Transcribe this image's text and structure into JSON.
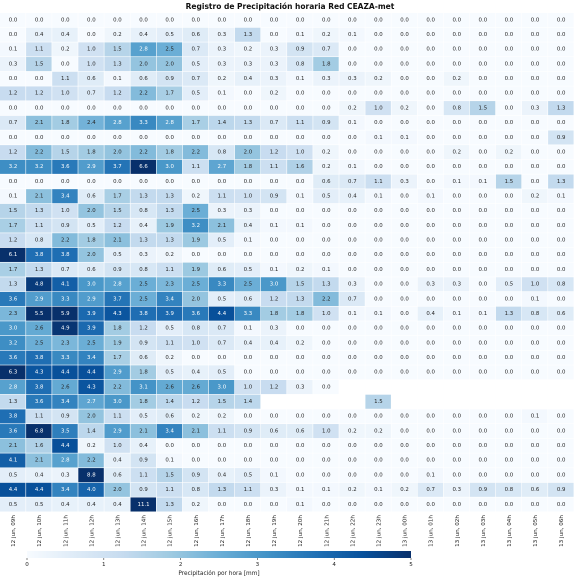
{
  "chart_data": {
    "type": "heatmap",
    "title": "Registro de Precipitación horaria Red CEAZA-met",
    "x_tick_labels": [
      "12 jun, 09h",
      "12 jun, 10h",
      "12 jun, 11h",
      "12 jun, 12h",
      "12 jun, 13h",
      "12 jun, 14h",
      "12 jun, 15h",
      "12 jun, 16h",
      "12 jun, 17h",
      "12 jun, 18h",
      "12 jun, 19h",
      "12 jun, 20h",
      "12 jun, 21h",
      "12 jun, 22h",
      "12 jun, 23h",
      "13 jun, 00h",
      "13 jun, 01h",
      "13 jun, 02h",
      "13 jun, 03h",
      "13 jun, 04h",
      "13 jun, 05h",
      "13 jun, 06h"
    ],
    "colorbar": {
      "label": "Precipitación por hora [mm]",
      "ticks": [
        0,
        1,
        2,
        3,
        4,
        5
      ],
      "range": [
        0,
        5
      ],
      "colormap": "Blues"
    },
    "grid": false,
    "rows": [
      {
        "values": [
          0.0,
          0.0,
          0.0,
          0.0,
          0.0,
          0.0,
          0.0,
          0.0,
          0.0,
          0.0,
          0.0,
          0.0,
          0.0,
          0.0,
          0.0,
          0.0,
          0.0,
          0.0,
          0.0,
          0.0,
          0.0,
          0.0
        ]
      },
      {
        "values": [
          0.0,
          0.4,
          0.4,
          0.0,
          0.2,
          0.4,
          0.5,
          0.6,
          0.3,
          1.3,
          0.0,
          0.1,
          0.2,
          0.1,
          0.0,
          0.0,
          0.0,
          0.0,
          0.0,
          0.0,
          0.0,
          0.0
        ]
      },
      {
        "values": [
          0.1,
          1.1,
          0.2,
          1.0,
          1.5,
          2.8,
          2.5,
          0.7,
          0.3,
          0.2,
          0.3,
          0.9,
          0.7,
          0.0,
          0.0,
          0.0,
          0.0,
          0.0,
          0.0,
          0.0,
          0.0,
          0.0
        ]
      },
      {
        "values": [
          0.3,
          1.5,
          0.0,
          1.0,
          1.3,
          2.0,
          2.0,
          0.5,
          0.3,
          0.3,
          0.3,
          0.8,
          1.8,
          0.0,
          0.0,
          0.0,
          0.0,
          0.0,
          0.0,
          0.0,
          0.0,
          0.0
        ]
      },
      {
        "values": [
          0.0,
          0.0,
          1.1,
          0.6,
          0.1,
          0.6,
          0.9,
          0.7,
          0.2,
          0.4,
          0.3,
          0.1,
          0.3,
          0.3,
          0.2,
          0.0,
          0.0,
          0.2,
          0.0,
          0.0,
          0.0,
          0.0
        ]
      },
      {
        "values": [
          1.2,
          1.2,
          1.0,
          0.7,
          1.2,
          2.2,
          1.7,
          0.5,
          0.1,
          0.0,
          0.2,
          0.0,
          0.0,
          0.0,
          0.0,
          0.0,
          0.0,
          0.0,
          0.0,
          0.0,
          0.0,
          0.0
        ]
      },
      {
        "values": [
          0.0,
          0.0,
          0.0,
          0.0,
          0.0,
          0.0,
          0.0,
          0.0,
          0.0,
          0.0,
          0.0,
          0.0,
          0.0,
          0.2,
          1.0,
          0.2,
          0.0,
          0.8,
          1.5,
          0.0,
          0.3,
          1.3
        ]
      },
      {
        "values": [
          0.7,
          2.1,
          1.8,
          2.4,
          2.8,
          3.3,
          2.8,
          1.7,
          1.4,
          1.3,
          0.7,
          1.1,
          0.9,
          0.1,
          0.0,
          0.0,
          0.0,
          0.0,
          0.0,
          0.0,
          0.0,
          0.0
        ]
      },
      {
        "values": [
          0.0,
          0.0,
          0.0,
          0.0,
          0.0,
          0.0,
          0.0,
          0.0,
          0.0,
          0.0,
          0.0,
          0.0,
          0.0,
          0.0,
          0.1,
          0.1,
          0.0,
          0.0,
          0.0,
          0.0,
          0.0,
          0.9
        ]
      },
      {
        "values": [
          1.2,
          2.2,
          1.5,
          1.8,
          2.0,
          2.2,
          1.8,
          2.2,
          0.8,
          2.0,
          1.2,
          1.0,
          0.2,
          0.0,
          0.0,
          0.0,
          0.0,
          0.2,
          0.0,
          0.2,
          0.0,
          0.0
        ]
      },
      {
        "values": [
          3.2,
          3.2,
          3.6,
          2.9,
          3.7,
          6.6,
          3.0,
          1.1,
          2.7,
          1.8,
          1.1,
          1.6,
          0.2,
          0.1,
          0.0,
          0.0,
          0.0,
          0.0,
          0.0,
          0.0,
          0.0,
          0.0
        ]
      },
      {
        "values": [
          0.0,
          0.0,
          0.0,
          0.0,
          0.0,
          0.0,
          0.0,
          0.0,
          0.0,
          0.0,
          0.0,
          0.0,
          0.6,
          0.7,
          1.1,
          0.3,
          0.0,
          0.1,
          0.1,
          1.5,
          0.0,
          1.3
        ]
      },
      {
        "values": [
          0.1,
          2.1,
          3.4,
          0.6,
          1.7,
          1.3,
          1.3,
          0.2,
          1.1,
          1.0,
          0.9,
          0.1,
          0.5,
          0.4,
          0.1,
          0.0,
          0.1,
          0.0,
          0.0,
          0.0,
          0.2,
          0.1
        ]
      },
      {
        "values": [
          1.5,
          1.3,
          1.0,
          2.0,
          1.5,
          0.8,
          1.3,
          2.5,
          0.3,
          0.3,
          0.0,
          0.0,
          0.0,
          0.0,
          0.0,
          0.0,
          0.0,
          0.0,
          0.0,
          0.0,
          0.0,
          0.0
        ]
      },
      {
        "values": [
          1.7,
          1.1,
          0.9,
          0.5,
          1.2,
          0.4,
          1.9,
          3.2,
          2.1,
          0.4,
          0.1,
          0.1,
          0.0,
          0.0,
          0.0,
          0.0,
          0.0,
          0.0,
          0.0,
          0.0,
          0.0,
          0.0
        ]
      },
      {
        "values": [
          1.2,
          0.8,
          2.2,
          1.8,
          2.1,
          1.3,
          1.3,
          1.9,
          0.5,
          0.1,
          0.0,
          0.0,
          0.0,
          0.0,
          0.0,
          0.0,
          0.0,
          0.0,
          0.0,
          0.0,
          0.0,
          0.0
        ]
      },
      {
        "values": [
          6.1,
          3.8,
          3.8,
          2.0,
          0.5,
          0.3,
          0.2,
          0.0,
          0.0,
          0.0,
          0.0,
          0.0,
          0.0,
          0.0,
          0.0,
          0.0,
          0.0,
          0.0,
          0.0,
          0.0,
          0.0,
          0.0
        ]
      },
      {
        "values": [
          1.7,
          1.3,
          0.7,
          0.6,
          0.9,
          0.8,
          1.1,
          1.9,
          0.6,
          0.5,
          0.1,
          0.2,
          0.1,
          0.0,
          0.0,
          0.0,
          0.0,
          0.0,
          0.0,
          0.0,
          0.0,
          0.0
        ]
      },
      {
        "values": [
          1.3,
          4.8,
          4.1,
          3.0,
          2.8,
          2.5,
          2.3,
          2.5,
          3.3,
          2.5,
          3.0,
          1.5,
          1.3,
          0.3,
          0.0,
          0.0,
          0.3,
          0.3,
          0.0,
          0.5,
          1.0,
          0.8
        ]
      },
      {
        "values": [
          3.6,
          2.9,
          3.3,
          2.9,
          3.7,
          2.5,
          3.4,
          2.0,
          0.5,
          0.6,
          1.2,
          1.3,
          2.2,
          0.7,
          0.0,
          0.0,
          0.0,
          0.0,
          0.0,
          0.0,
          0.1,
          0.0
        ]
      },
      {
        "values": [
          2.3,
          5.5,
          5.9,
          3.9,
          4.3,
          3.8,
          3.9,
          3.6,
          4.4,
          3.3,
          1.8,
          1.8,
          1.0,
          0.1,
          0.1,
          0.0,
          0.4,
          0.1,
          0.1,
          1.3,
          0.8,
          0.6
        ]
      },
      {
        "values": [
          3.0,
          2.6,
          4.9,
          3.9,
          1.8,
          1.2,
          0.5,
          0.8,
          0.7,
          0.1,
          0.3,
          0.0,
          0.0,
          0.0,
          0.0,
          0.0,
          0.0,
          0.0,
          0.0,
          0.0,
          0.0,
          0.0
        ]
      },
      {
        "values": [
          3.2,
          2.5,
          2.3,
          2.5,
          1.9,
          0.9,
          1.1,
          1.0,
          0.7,
          0.4,
          0.4,
          0.2,
          0.0,
          0.0,
          0.0,
          0.0,
          0.0,
          0.0,
          0.0,
          0.0,
          0.0,
          0.0
        ]
      },
      {
        "values": [
          3.6,
          3.8,
          3.3,
          3.4,
          1.7,
          0.6,
          0.2,
          0.0,
          0.0,
          0.0,
          0.0,
          0.0,
          0.0,
          0.0,
          0.0,
          0.0,
          0.0,
          0.0,
          0.0,
          0.0,
          0.0,
          0.0
        ]
      },
      {
        "values": [
          6.3,
          4.3,
          4.4,
          4.4,
          2.9,
          1.8,
          0.5,
          0.4,
          0.5,
          0.0,
          0.0,
          0.0,
          0.0,
          0.0,
          0.0,
          0.0,
          0.0,
          0.0,
          0.0,
          0.0,
          0.0,
          0.0
        ]
      },
      {
        "values": [
          2.8,
          3.8,
          2.6,
          4.3,
          2.2,
          3.1,
          2.6,
          2.6,
          3.0,
          1.0,
          1.2,
          0.3,
          0.0,
          null,
          null,
          null,
          null,
          null,
          null,
          null,
          null,
          null
        ]
      },
      {
        "values": [
          1.3,
          3.6,
          3.4,
          2.7,
          3.0,
          1.8,
          1.4,
          1.2,
          1.5,
          1.4,
          null,
          null,
          null,
          null,
          1.5,
          null,
          null,
          null,
          null,
          null,
          null,
          null
        ]
      },
      {
        "values": [
          3.8,
          1.1,
          0.9,
          2.0,
          1.1,
          0.5,
          0.6,
          0.2,
          0.2,
          0.0,
          0.0,
          0.0,
          0.0,
          0.0,
          0.0,
          0.0,
          0.0,
          0.0,
          0.0,
          0.0,
          0.1,
          0.0
        ]
      },
      {
        "values": [
          3.6,
          6.8,
          3.5,
          1.4,
          2.9,
          2.1,
          3.4,
          2.1,
          1.1,
          0.9,
          0.6,
          0.6,
          1.0,
          0.2,
          0.2,
          0.0,
          0.0,
          0.0,
          0.0,
          0.0,
          0.0,
          0.0
        ]
      },
      {
        "values": [
          2.1,
          1.6,
          4.4,
          0.2,
          1.0,
          0.4,
          0.0,
          0.0,
          0.0,
          0.0,
          0.0,
          0.0,
          0.0,
          0.0,
          0.0,
          0.0,
          0.0,
          0.0,
          0.0,
          0.0,
          0.0,
          0.0
        ]
      },
      {
        "values": [
          4.1,
          2.1,
          2.8,
          2.2,
          0.4,
          0.9,
          0.1,
          0.0,
          0.0,
          0.0,
          0.0,
          0.0,
          0.0,
          0.0,
          0.0,
          0.0,
          0.0,
          0.0,
          0.0,
          0.0,
          0.0,
          0.0
        ]
      },
      {
        "values": [
          0.5,
          0.4,
          0.3,
          8.8,
          0.6,
          1.1,
          1.5,
          0.9,
          0.4,
          0.5,
          0.1,
          0.0,
          0.0,
          0.0,
          0.0,
          0.0,
          0.1,
          0.0,
          0.0,
          0.0,
          0.0,
          0.0
        ]
      },
      {
        "values": [
          4.4,
          4.4,
          3.4,
          4.0,
          2.0,
          0.9,
          1.1,
          0.8,
          1.3,
          1.1,
          0.3,
          0.1,
          0.1,
          0.2,
          0.1,
          0.2,
          0.7,
          0.3,
          0.9,
          0.8,
          0.6,
          0.9
        ]
      },
      {
        "values": [
          0.5,
          0.5,
          0.4,
          0.4,
          0.4,
          11.1,
          1.3,
          0.2,
          0.0,
          0.0,
          0.0,
          0.1,
          0.0,
          0.0,
          0.0,
          0.0,
          0.0,
          0.0,
          0.0,
          0.0,
          0.0,
          0.0
        ]
      }
    ]
  }
}
